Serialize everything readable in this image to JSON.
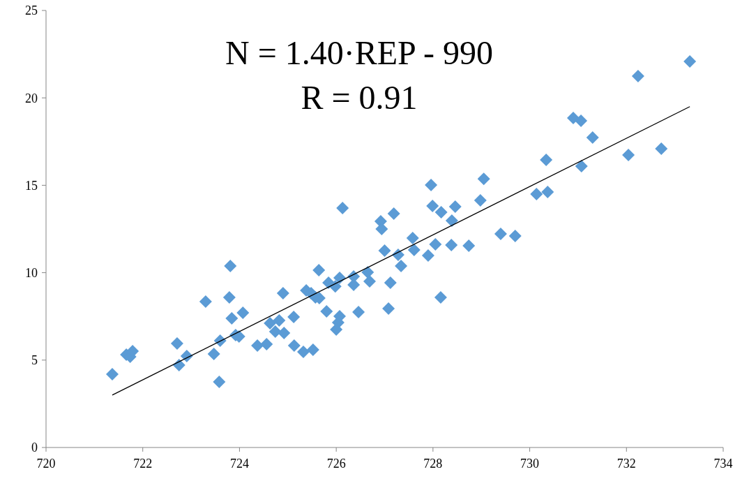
{
  "chart_data": {
    "type": "scatter",
    "annotations": [
      "N = 1.40·REP - 990",
      "R = 0.91"
    ],
    "xlim": [
      720,
      734
    ],
    "xticks": [
      720,
      722,
      724,
      726,
      728,
      730,
      732,
      734
    ],
    "ylim": [
      0,
      25
    ],
    "yticks": [
      0,
      5,
      10,
      15,
      20,
      25
    ],
    "grid": false,
    "series": [
      {
        "marker": "diamond",
        "color": "#5b9bd5",
        "x": [
          721.37,
          721.66,
          721.74,
          721.79,
          722.71,
          722.75,
          722.91,
          723.3,
          723.47,
          723.58,
          723.6,
          723.79,
          723.81,
          723.84,
          723.92,
          723.99,
          724.07,
          724.37,
          724.56,
          724.63,
          724.74,
          724.82,
          724.9,
          724.92,
          725.12,
          725.13,
          725.32,
          725.38,
          725.48,
          725.52,
          725.57,
          725.65,
          725.64,
          725.84,
          725.8,
          725.98,
          726.07,
          726.07,
          726.04,
          726,
          726.13,
          726.36,
          726.36,
          726.46,
          726.65,
          726.69,
          726.92,
          726.94,
          727,
          727.08,
          727.12,
          727.19,
          727.28,
          727.34,
          727.58,
          727.61,
          727.9,
          727.96,
          727.99,
          728.05,
          728.16,
          728.17,
          728.38,
          728.39,
          728.46,
          728.74,
          728.98,
          729.05,
          729.4,
          729.7,
          730.14,
          730.34,
          730.37,
          730.9,
          731.06,
          731.07,
          731.3,
          732.04,
          732.24,
          732.72,
          733.31
        ],
        "values": [
          4.19,
          5.31,
          5.19,
          5.51,
          5.95,
          4.71,
          5.23,
          8.35,
          5.35,
          3.75,
          6.11,
          8.59,
          10.38,
          7.39,
          6.43,
          6.35,
          7.71,
          5.83,
          5.91,
          7.11,
          6.63,
          7.27,
          8.83,
          6.55,
          7.47,
          5.83,
          5.47,
          8.99,
          8.83,
          5.59,
          8.59,
          8.55,
          10.14,
          9.42,
          7.79,
          9.22,
          9.7,
          7.51,
          7.15,
          6.75,
          13.7,
          9.78,
          9.31,
          7.75,
          10.02,
          9.5,
          12.94,
          12.5,
          11.26,
          7.95,
          9.42,
          13.38,
          11.02,
          10.38,
          11.98,
          11.3,
          10.98,
          15.02,
          13.82,
          11.62,
          8.59,
          13.46,
          11.58,
          12.98,
          13.78,
          11.54,
          14.14,
          15.37,
          12.22,
          12.1,
          14.5,
          16.45,
          14.62,
          18.85,
          18.69,
          16.09,
          17.73,
          16.73,
          21.25,
          17.09,
          22.08
        ]
      },
      {
        "type": "line",
        "marker": "none",
        "color": "#000000",
        "line_style": "solid",
        "x": [
          721.37,
          733.31
        ],
        "values": [
          3.0,
          19.5
        ]
      }
    ]
  }
}
